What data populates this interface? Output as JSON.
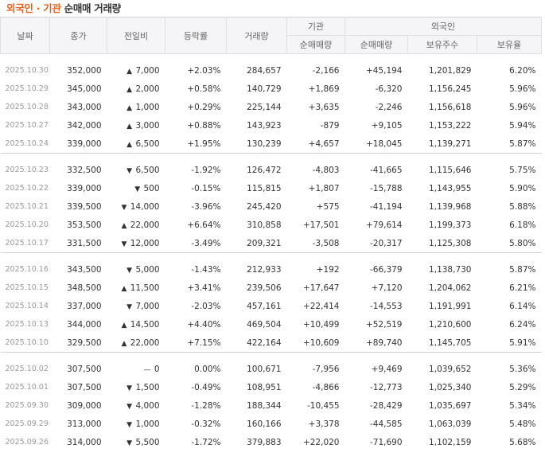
{
  "title": {
    "part1": "외국인",
    "sep": " · ",
    "part2": "기관",
    "part3": " 순매매 거래량"
  },
  "headers": {
    "date": "날짜",
    "close": "종가",
    "change": "전일비",
    "rate": "등락률",
    "volume": "거래량",
    "institution": "기관",
    "foreign": "외국인",
    "inst_net": "순매매량",
    "foreign_net": "순매매량",
    "holdings": "보유주수",
    "ratio": "보유율"
  },
  "colors": {
    "up": "#e0251c",
    "down": "#1a5cc6",
    "accent": "#e8641e"
  },
  "groups": [
    [
      {
        "date": "2025.10.30",
        "close": "352,000",
        "dir": "up",
        "diff": "7,000",
        "rate": "+2.03%",
        "volume": "284,657",
        "inst": "-2,166",
        "foreign": "+45,194",
        "holdings": "1,201,829",
        "ratio": "6.20%"
      },
      {
        "date": "2025.10.29",
        "close": "345,000",
        "dir": "up",
        "diff": "2,000",
        "rate": "+0.58%",
        "volume": "140,729",
        "inst": "+1,869",
        "foreign": "-6,320",
        "holdings": "1,156,245",
        "ratio": "5.96%"
      },
      {
        "date": "2025.10.28",
        "close": "343,000",
        "dir": "up",
        "diff": "1,000",
        "rate": "+0.29%",
        "volume": "225,144",
        "inst": "+3,635",
        "foreign": "-2,246",
        "holdings": "1,156,618",
        "ratio": "5.96%"
      },
      {
        "date": "2025.10.27",
        "close": "342,000",
        "dir": "up",
        "diff": "3,000",
        "rate": "+0.88%",
        "volume": "143,923",
        "inst": "-879",
        "foreign": "+9,105",
        "holdings": "1,153,222",
        "ratio": "5.94%"
      },
      {
        "date": "2025.10.24",
        "close": "339,000",
        "dir": "up",
        "diff": "6,500",
        "rate": "+1.95%",
        "volume": "130,239",
        "inst": "+4,657",
        "foreign": "+18,045",
        "holdings": "1,139,271",
        "ratio": "5.87%"
      }
    ],
    [
      {
        "date": "2025.10.23",
        "close": "332,500",
        "dir": "down",
        "diff": "6,500",
        "rate": "-1.92%",
        "volume": "126,472",
        "inst": "-4,803",
        "foreign": "-41,665",
        "holdings": "1,115,646",
        "ratio": "5.75%"
      },
      {
        "date": "2025.10.22",
        "close": "339,000",
        "dir": "down",
        "diff": "500",
        "rate": "-0.15%",
        "volume": "115,815",
        "inst": "+1,807",
        "foreign": "-15,788",
        "holdings": "1,143,955",
        "ratio": "5.90%"
      },
      {
        "date": "2025.10.21",
        "close": "339,500",
        "dir": "down",
        "diff": "14,000",
        "rate": "-3.96%",
        "volume": "245,420",
        "inst": "+575",
        "foreign": "-41,194",
        "holdings": "1,139,968",
        "ratio": "5.88%"
      },
      {
        "date": "2025.10.20",
        "close": "353,500",
        "dir": "up",
        "diff": "22,000",
        "rate": "+6.64%",
        "volume": "310,858",
        "inst": "+17,501",
        "foreign": "+79,614",
        "holdings": "1,199,373",
        "ratio": "6.18%"
      },
      {
        "date": "2025.10.17",
        "close": "331,500",
        "dir": "down",
        "diff": "12,000",
        "rate": "-3.49%",
        "volume": "209,321",
        "inst": "-3,508",
        "foreign": "-20,317",
        "holdings": "1,125,308",
        "ratio": "5.80%"
      }
    ],
    [
      {
        "date": "2025.10.16",
        "close": "343,500",
        "dir": "down",
        "diff": "5,000",
        "rate": "-1.43%",
        "volume": "212,933",
        "inst": "+192",
        "foreign": "-66,379",
        "holdings": "1,138,730",
        "ratio": "5.87%"
      },
      {
        "date": "2025.10.15",
        "close": "348,500",
        "dir": "up",
        "diff": "11,500",
        "rate": "+3.41%",
        "volume": "239,506",
        "inst": "+17,647",
        "foreign": "+7,120",
        "holdings": "1,204,062",
        "ratio": "6.21%"
      },
      {
        "date": "2025.10.14",
        "close": "337,000",
        "dir": "down",
        "diff": "7,000",
        "rate": "-2.03%",
        "volume": "457,161",
        "inst": "+22,414",
        "foreign": "-14,553",
        "holdings": "1,191,991",
        "ratio": "6.14%"
      },
      {
        "date": "2025.10.13",
        "close": "344,000",
        "dir": "up",
        "diff": "14,500",
        "rate": "+4.40%",
        "volume": "469,504",
        "inst": "+10,499",
        "foreign": "+52,519",
        "holdings": "1,210,600",
        "ratio": "6.24%"
      },
      {
        "date": "2025.10.10",
        "close": "329,500",
        "dir": "up",
        "diff": "22,000",
        "rate": "+7.15%",
        "volume": "422,164",
        "inst": "+10,609",
        "foreign": "+89,740",
        "holdings": "1,145,705",
        "ratio": "5.91%"
      }
    ],
    [
      {
        "date": "2025.10.02",
        "close": "307,500",
        "dir": "flat",
        "diff": "0",
        "rate": "0.00%",
        "volume": "100,671",
        "inst": "-7,956",
        "foreign": "+9,469",
        "holdings": "1,039,652",
        "ratio": "5.36%"
      },
      {
        "date": "2025.10.01",
        "close": "307,500",
        "dir": "down",
        "diff": "1,500",
        "rate": "-0.49%",
        "volume": "108,951",
        "inst": "-4,866",
        "foreign": "-12,773",
        "holdings": "1,025,340",
        "ratio": "5.29%"
      },
      {
        "date": "2025.09.30",
        "close": "309,000",
        "dir": "down",
        "diff": "4,000",
        "rate": "-1.28%",
        "volume": "188,344",
        "inst": "-10,455",
        "foreign": "-28,429",
        "holdings": "1,035,697",
        "ratio": "5.34%"
      },
      {
        "date": "2025.09.29",
        "close": "313,000",
        "dir": "down",
        "diff": "1,000",
        "rate": "-0.32%",
        "volume": "160,166",
        "inst": "+3,378",
        "foreign": "-44,585",
        "holdings": "1,063,039",
        "ratio": "5.48%"
      },
      {
        "date": "2025.09.26",
        "close": "314,000",
        "dir": "down",
        "diff": "5,500",
        "rate": "-1.72%",
        "volume": "379,883",
        "inst": "+22,020",
        "foreign": "-71,690",
        "holdings": "1,102,159",
        "ratio": "5.68%"
      }
    ]
  ]
}
